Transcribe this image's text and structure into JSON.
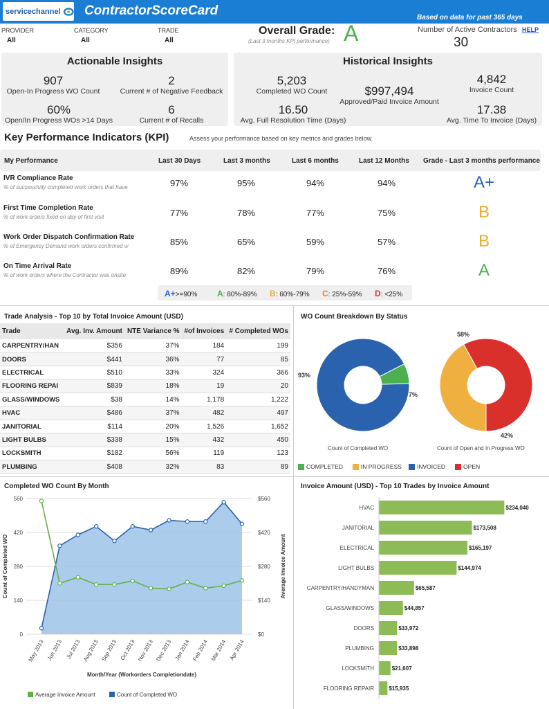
{
  "header": {
    "logo_text": "servicechannel",
    "title": "ContractorScoreCard",
    "based_on": "Based on data for past 365 days"
  },
  "filters": [
    {
      "label": "PROVIDER",
      "value": "All"
    },
    {
      "label": "CATEGORY",
      "value": "All"
    },
    {
      "label": "TRADE",
      "value": "All"
    }
  ],
  "overall": {
    "label": "Overall Grade:",
    "sub": "(Last 3 months KPI performance)",
    "grade": "A"
  },
  "active": {
    "label": "Number of Active Contractors",
    "value": "30",
    "help": "HELP"
  },
  "actionable": {
    "title": "Actionable Insights",
    "metrics": [
      {
        "value": "907",
        "label": "Open-In Progress WO Count"
      },
      {
        "value": "2",
        "label": "Current # of Negative Feedback"
      },
      {
        "value": "60%",
        "label": "Open/In Progress WOs >14 Days"
      },
      {
        "value": "6",
        "label": "Current # of Recalls"
      }
    ]
  },
  "historical": {
    "title": "Historical Insights",
    "metrics": [
      {
        "value": "5,203",
        "label": "Completed WO Count"
      },
      {
        "value": "$997,494",
        "label": "Approved/Paid Invoice Amount"
      },
      {
        "value": "4,842",
        "label": "Invoice Count"
      },
      {
        "value": "16.50",
        "label": "Avg. Full Resolution Time (Days)"
      },
      {
        "value": "17.38",
        "label": "Avg. Time To Invoice (Days)"
      }
    ]
  },
  "kpi": {
    "title": "Key Performance Indicators (KPI)",
    "subtitle": "Assess your performance based on key metrics and grades below.",
    "headers": [
      "My Performance",
      "Last 30 Days",
      "Last 3 months",
      "Last 6 months",
      "Last 12 Months",
      "Grade - Last 3 months performance"
    ],
    "rows": [
      {
        "name": "IVR Compliance Rate",
        "desc": "% of successfully completed work orders that have",
        "values": [
          "97%",
          "95%",
          "94%",
          "94%"
        ],
        "grade": "A+",
        "grade_color": "#2a5fc4"
      },
      {
        "name": "First Time Completion Rate",
        "desc": "% of work orders fixed on day of first visit",
        "values": [
          "77%",
          "78%",
          "77%",
          "75%"
        ],
        "grade": "B",
        "grade_color": "#f0a830"
      },
      {
        "name": "Work Order Dispatch Confirmation Rate",
        "desc": "% of Emergency Demand work orders confirmed w",
        "values": [
          "85%",
          "65%",
          "59%",
          "57%"
        ],
        "grade": "B",
        "grade_color": "#f0a830"
      },
      {
        "name": "On Time Arrival Rate",
        "desc": "% of work orders where the Contractor was onsite",
        "values": [
          "89%",
          "82%",
          "79%",
          "76%"
        ],
        "grade": "A",
        "grade_color": "#4caf50"
      }
    ],
    "legend": [
      {
        "grade": "A+",
        "range": ">=90%",
        "color": "#2a5fc4"
      },
      {
        "grade": "A",
        "range": ": 80%-89%",
        "color": "#4caf50"
      },
      {
        "grade": "B",
        "range": ": 60%-79%",
        "color": "#f0a830"
      },
      {
        "grade": "C",
        "range": ": 25%-59%",
        "color": "#f07a20"
      },
      {
        "grade": "D",
        "range": ": <25%",
        "color": "#e03030"
      }
    ]
  },
  "trade_analysis": {
    "title": "Trade Analysis - Top 10 by Total Invoice Amount (USD)",
    "columns": [
      "Trade",
      "Avg. Inv. Amount",
      "NTE Variance %",
      "#of Invoices",
      "# Completed WOs"
    ],
    "rows": [
      [
        "CARPENTRY/HAN",
        "$356",
        "37%",
        "184",
        "199"
      ],
      [
        "DOORS",
        "$441",
        "36%",
        "77",
        "85"
      ],
      [
        "ELECTRICAL",
        "$510",
        "33%",
        "324",
        "366"
      ],
      [
        "FLOORING REPAI",
        "$839",
        "18%",
        "19",
        "20"
      ],
      [
        "GLASS/WINDOWS",
        "$38",
        "14%",
        "1,178",
        "1,222"
      ],
      [
        "HVAC",
        "$486",
        "37%",
        "482",
        "497"
      ],
      [
        "JANITORIAL",
        "$114",
        "20%",
        "1,526",
        "1,652"
      ],
      [
        "LIGHT BULBS",
        "$338",
        "15%",
        "432",
        "450"
      ],
      [
        "LOCKSMITH",
        "$182",
        "56%",
        "119",
        "123"
      ],
      [
        "PLUMBING",
        "$408",
        "32%",
        "83",
        "89"
      ]
    ]
  },
  "chart_data": [
    {
      "type": "pie",
      "title": "WO Count Breakdown By Status",
      "caption": "Count of Completed WO",
      "categories": [
        "COMPLETED",
        "INVOICED"
      ],
      "values": [
        7,
        93
      ],
      "labels": [
        "7%",
        "93%"
      ],
      "colors": [
        "#4caf50",
        "#2a62ad"
      ]
    },
    {
      "type": "pie",
      "caption": "Count of Open and In Progress WO",
      "categories": [
        "IN PROGRESS",
        "OPEN"
      ],
      "values": [
        42,
        58
      ],
      "labels": [
        "42%",
        "58%"
      ],
      "colors": [
        "#f0b040",
        "#d9302c"
      ]
    },
    {
      "type": "area",
      "title": "Completed WO Count By Month",
      "xlabel": "Month/Year (Workorders Completiondate)",
      "ylabel": "Count of Completed WO",
      "y2label": "Average Invoice Amount",
      "categories": [
        "May 2013",
        "Jun 2013",
        "Jul 2013",
        "Aug 2013",
        "Sep 2013",
        "Oct 2013",
        "Nov 2013",
        "Dec 2013",
        "Jan 2014",
        "Feb 2014",
        "Mar 2014",
        "Apr 2014"
      ],
      "yticks": [
        "0",
        "140",
        "280",
        "420",
        "560"
      ],
      "y2ticks": [
        "$0",
        "$140",
        "$280",
        "$420",
        "$560"
      ],
      "ylim": [
        0,
        560
      ],
      "series": [
        {
          "name": "Count of Completed WO",
          "values": [
            25,
            365,
            410,
            445,
            385,
            445,
            430,
            470,
            465,
            465,
            545,
            455
          ],
          "color": "#2a62ad"
        },
        {
          "name": "Average Invoice Amount",
          "values": [
            550,
            210,
            235,
            205,
            205,
            220,
            190,
            187,
            215,
            190,
            200,
            222
          ],
          "color": "#62b04a"
        }
      ]
    },
    {
      "type": "bar",
      "title": "Invoice Amount (USD) - Top 10 Trades by Invoice Amount",
      "categories": [
        "HVAC",
        "JANITORIAL",
        "ELECTRICAL",
        "LIGHT BULBS",
        "CARPENTRY/HANDYMAN",
        "GLASS/WINDOWS",
        "DOORS",
        "PLUMBING",
        "LOCKSMITH",
        "FLOORING REPAIR"
      ],
      "values": [
        234040,
        173508,
        165197,
        144974,
        65587,
        44857,
        33972,
        33898,
        21607,
        15935
      ],
      "labels": [
        "$234,040",
        "$173,508",
        "$165,197",
        "$144,974",
        "$65,587",
        "$44,857",
        "$33,972",
        "$33,898",
        "$21,607",
        "$15,935"
      ],
      "color": "#8dbb55"
    }
  ],
  "status_legend": [
    {
      "label": "COMPLETED",
      "color": "#4caf50"
    },
    {
      "label": "IN PROGRESS",
      "color": "#f0b040"
    },
    {
      "label": "INVOICED",
      "color": "#2a62ad"
    },
    {
      "label": "OPEN",
      "color": "#d9302c"
    }
  ]
}
